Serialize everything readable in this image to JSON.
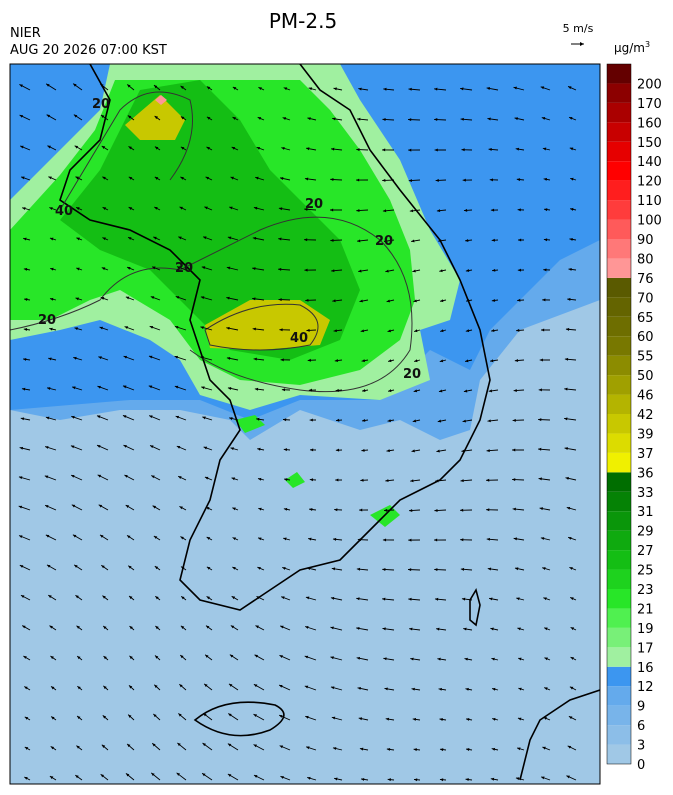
{
  "title": "PM-2.5",
  "source": "NIER",
  "timestamp": "AUG 20 2026 07:00 KST",
  "wind_scale": "5 m/s",
  "colorbar": {
    "unit": "µg/m",
    "unit_superscript": "3",
    "levels": [
      0,
      3,
      6,
      9,
      12,
      16,
      17,
      19,
      21,
      23,
      25,
      27,
      29,
      31,
      33,
      36,
      37,
      39,
      42,
      46,
      50,
      55,
      60,
      65,
      70,
      76,
      80,
      90,
      100,
      110,
      120,
      140,
      150,
      160,
      170,
      200
    ],
    "colors": [
      "#a0c8e6",
      "#8cbee8",
      "#78b4ea",
      "#64aaec",
      "#3c96f0",
      "#a0f0a0",
      "#78f078",
      "#50f050",
      "#28e628",
      "#1ed21e",
      "#14be14",
      "#0faa0f",
      "#0a960a",
      "#058205",
      "#006e00",
      "#f0f000",
      "#dcdc00",
      "#c8c800",
      "#b4b400",
      "#a0a000",
      "#8c8c00",
      "#787800",
      "#6e6e00",
      "#646400",
      "#5a5a00",
      "#ff9696",
      "#ff7878",
      "#ff5a5a",
      "#ff3c3c",
      "#ff1e1e",
      "#ff0000",
      "#e60000",
      "#c80000",
      "#aa0000",
      "#8c0000",
      "#640000"
    ]
  },
  "contour_labels": [
    "20",
    "20",
    "20",
    "20",
    "20",
    "20",
    "40",
    "40"
  ]
}
